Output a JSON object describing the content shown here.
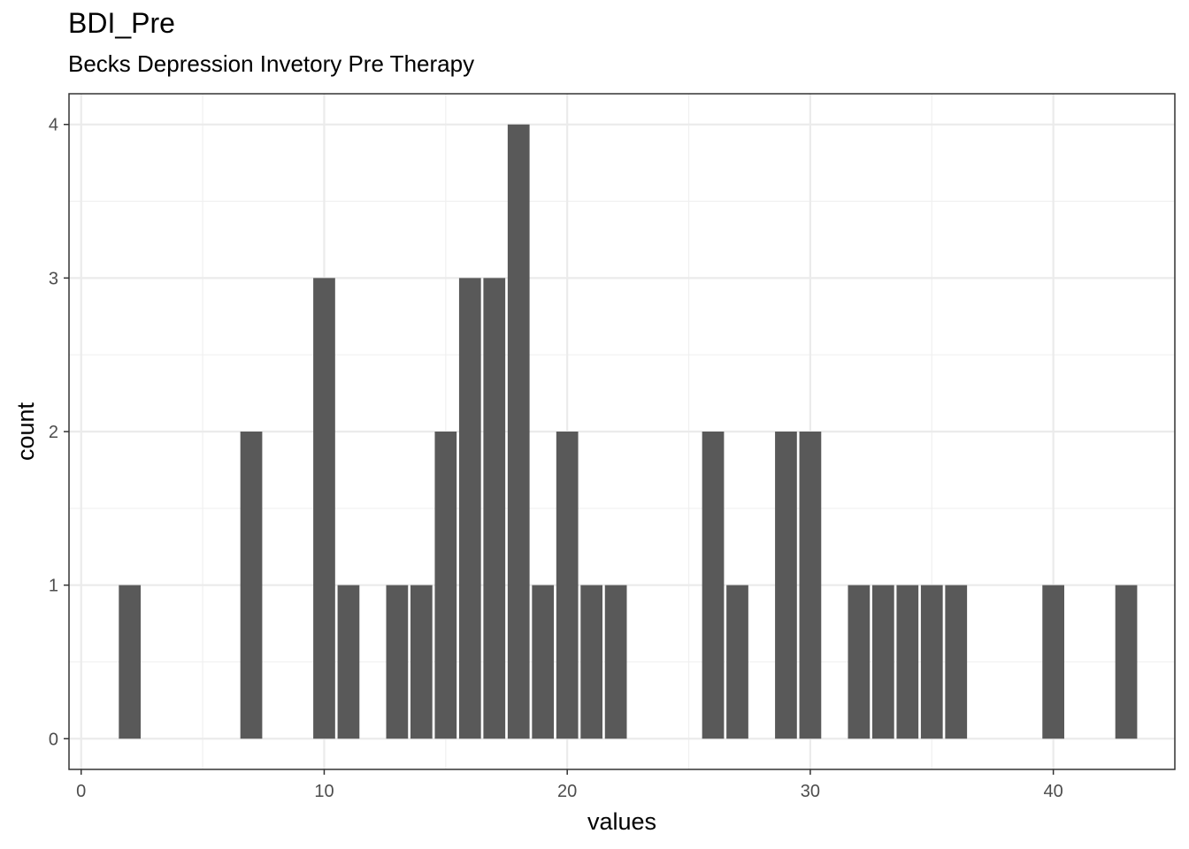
{
  "chart_data": {
    "type": "bar",
    "title": "BDI_Pre",
    "subtitle": "Becks Depression Invetory Pre Therapy",
    "xlabel": "values",
    "ylabel": "count",
    "xlim": [
      -0.5,
      45
    ],
    "ylim": [
      -0.2,
      4.2
    ],
    "x_ticks": [
      0,
      10,
      20,
      30,
      40
    ],
    "y_ticks": [
      0,
      1,
      2,
      3,
      4
    ],
    "grid": true,
    "bar_color": "#595959",
    "bars": [
      {
        "x": 2,
        "count": 1
      },
      {
        "x": 7,
        "count": 2
      },
      {
        "x": 10,
        "count": 3
      },
      {
        "x": 11,
        "count": 1
      },
      {
        "x": 13,
        "count": 1
      },
      {
        "x": 14,
        "count": 1
      },
      {
        "x": 15,
        "count": 2
      },
      {
        "x": 16,
        "count": 3
      },
      {
        "x": 17,
        "count": 3
      },
      {
        "x": 18,
        "count": 4
      },
      {
        "x": 19,
        "count": 1
      },
      {
        "x": 20,
        "count": 2
      },
      {
        "x": 21,
        "count": 1
      },
      {
        "x": 22,
        "count": 1
      },
      {
        "x": 26,
        "count": 2
      },
      {
        "x": 27,
        "count": 1
      },
      {
        "x": 29,
        "count": 2
      },
      {
        "x": 30,
        "count": 2
      },
      {
        "x": 32,
        "count": 1
      },
      {
        "x": 33,
        "count": 1
      },
      {
        "x": 34,
        "count": 1
      },
      {
        "x": 35,
        "count": 1
      },
      {
        "x": 36,
        "count": 1
      },
      {
        "x": 40,
        "count": 1
      },
      {
        "x": 43,
        "count": 1
      }
    ]
  }
}
